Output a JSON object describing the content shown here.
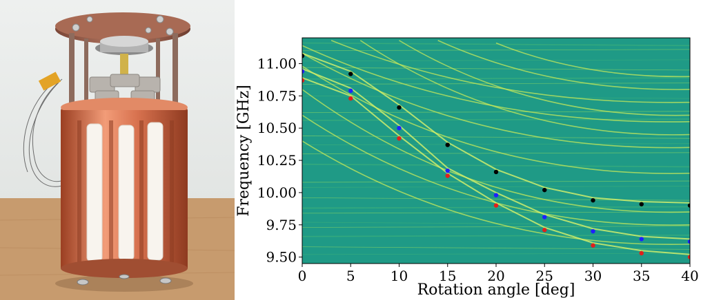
{
  "photo": {
    "subject": "cylindrical copper resonator assembly with white rods and grey rotating stage",
    "colors": {
      "background_wall": "#e9ebe8",
      "table_wood": "#c99b6b",
      "copper": "#c9623f",
      "copper_light": "#f0a07c",
      "rods": "#f7f3ec",
      "plate": "#9c5b45",
      "stage": "#a9a9a9"
    }
  },
  "chart_data": {
    "type": "scatter",
    "title": "",
    "xlabel": "Rotation angle [deg]",
    "ylabel": "Frequency [GHz]",
    "xlim": [
      0,
      40
    ],
    "ylim": [
      9.45,
      11.2
    ],
    "xticks": [
      0,
      5,
      10,
      15,
      20,
      25,
      30,
      35,
      40
    ],
    "yticks": [
      9.5,
      9.75,
      10.0,
      10.25,
      10.5,
      10.75,
      11.0
    ],
    "ytick_labels": [
      "9.50",
      "9.75",
      "10.00",
      "10.25",
      "10.50",
      "10.75",
      "11.00"
    ],
    "background": "heatmap of resonance spectrum (teal-green with yellow-green resonance lines)",
    "grid": false,
    "series": [
      {
        "color": "#000000",
        "x": [
          0,
          5,
          10,
          15,
          20,
          25,
          30,
          35,
          40
        ],
        "y": [
          11.06,
          10.92,
          10.66,
          10.37,
          10.16,
          10.02,
          9.94,
          9.91,
          9.9
        ]
      },
      {
        "color": "#1f1fff",
        "x": [
          0,
          5,
          10,
          15,
          20,
          25,
          30,
          35,
          40
        ],
        "y": [
          10.94,
          10.79,
          10.5,
          10.17,
          9.98,
          9.81,
          9.7,
          9.64,
          9.62
        ]
      },
      {
        "color": "#e0201c",
        "x": [
          0,
          5,
          10,
          15,
          20,
          25,
          30,
          35,
          40
        ],
        "y": [
          10.87,
          10.73,
          10.42,
          10.13,
          9.9,
          9.71,
          9.59,
          9.53,
          9.5
        ]
      }
    ]
  }
}
